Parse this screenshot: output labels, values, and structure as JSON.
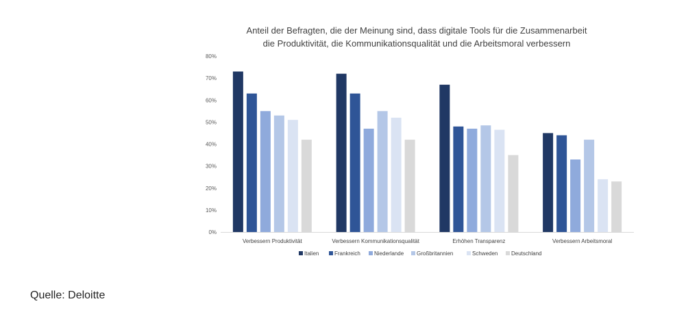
{
  "chart_data": {
    "type": "bar",
    "title_lines": [
      "Anteil der Befragten, die der Meinung sind, dass digitale Tools für die Zusammenarbeit",
      "die Produktivität, die Kommunikationsqualität und die Arbeitsmoral verbessern"
    ],
    "categories": [
      "Verbessern Produktivität",
      "Verbessern Kommunikationsqualität",
      "Erhöhen Transparenz",
      "Verbessern Arbeitsmoral"
    ],
    "series": [
      {
        "name": "Italien",
        "color": "#203864",
        "values": [
          73,
          72,
          67,
          45
        ]
      },
      {
        "name": "Frankreich",
        "color": "#2F5597",
        "values": [
          63,
          63,
          48,
          44
        ]
      },
      {
        "name": "Niederlande",
        "color": "#8FAADC",
        "values": [
          55,
          47,
          47,
          33
        ]
      },
      {
        "name": "Großbritannien",
        "color": "#B4C7E7",
        "values": [
          53,
          55,
          48.5,
          42
        ]
      },
      {
        "name": "Schweden",
        "color": "#DAE3F3",
        "values": [
          51,
          52,
          46.5,
          24
        ]
      },
      {
        "name": "Deutschland",
        "color": "#D9D9D9",
        "values": [
          42,
          42,
          35,
          23
        ]
      }
    ],
    "ylim": [
      0,
      80
    ],
    "yticks": [
      0,
      10,
      20,
      30,
      40,
      50,
      60,
      70,
      80
    ],
    "ytick_labels": [
      "0%",
      "10%",
      "20%",
      "30%",
      "40%",
      "50%",
      "60%",
      "70%",
      "80%"
    ],
    "legend_position": "bottom"
  },
  "source_text": "Quelle: Deloitte"
}
